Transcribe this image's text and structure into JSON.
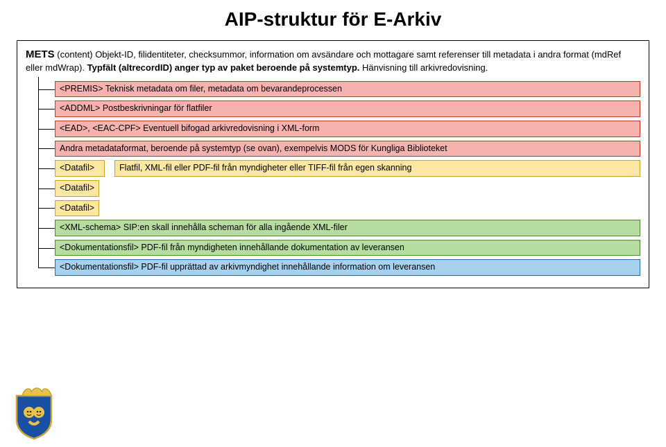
{
  "title": "AIP-struktur för E-Arkiv",
  "mets": {
    "lead": "METS",
    "body": " (content) Objekt-ID, filidentiteter, checksummor, information om avsändare och mottagare samt referenser till metadata i andra format (mdRef eller mdWrap). ",
    "bold2": "Typfält (altrecordID) anger typ av paket beroende på systemtyp.",
    "tail": " Hänvisning till arkivredovisning."
  },
  "colors": {
    "red_fill": "#f6b2ae",
    "red_border": "#c0392b",
    "yellow_fill": "#fbe6a2",
    "yellow_border": "#caa12a",
    "green_fill": "#b7dca0",
    "green_border": "#4f8b2f",
    "blue_fill": "#a8d1ef",
    "blue_border": "#2b6aa0",
    "black": "#000000"
  },
  "rows": [
    {
      "color": "red",
      "full": true,
      "text": "<PREMIS> Teknisk metadata om filer, metadata om bevarandeprocessen"
    },
    {
      "color": "red",
      "full": true,
      "text": "<ADDML> Postbeskrivningar för flatfiler"
    },
    {
      "color": "red",
      "full": true,
      "text": "<EAD>, <EAC-CPF> Eventuell bifogad arkivredovisning i XML-form"
    },
    {
      "color": "red",
      "full": true,
      "text": "Andra metadataformat, beroende på systemtyp (se ovan), exempelvis MODS för Kungliga Biblioteket"
    },
    {
      "color": "yellow",
      "inline": true,
      "label": "<Datafil>",
      "desc": "Flatfil, XML-fil eller PDF-fil från myndigheter eller TIFF-fil från egen skanning"
    },
    {
      "color": "yellow",
      "short": true,
      "text": "<Datafil>"
    },
    {
      "color": "yellow",
      "short": true,
      "text": "<Datafil>"
    },
    {
      "color": "green",
      "full": true,
      "text": "<XML-schema> SIP:en skall innehålla scheman för alla ingående XML-filer"
    },
    {
      "color": "green",
      "full": true,
      "text": "<Dokumentationsfil> PDF-fil från myndigheten innehållande dokumentation av leveransen"
    },
    {
      "color": "blue",
      "full": true,
      "text": "<Dokumentationsfil> PDF-fil upprättad av arkivmyndighet innehållande information om leveransen"
    }
  ],
  "crest": {
    "shield_fill": "#1851a3",
    "shield_stroke": "#c9a43b",
    "crown_fill": "#e8c24a",
    "face_fill": "#e8c24a"
  }
}
